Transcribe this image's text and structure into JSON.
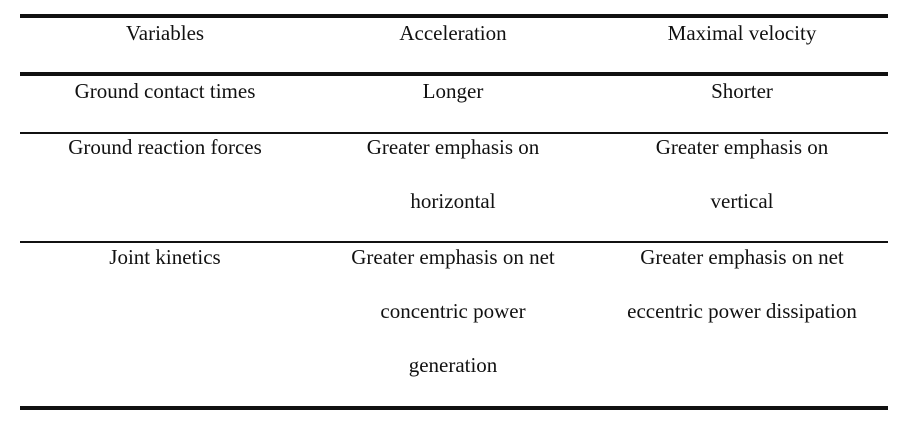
{
  "table": {
    "headers": [
      "Variables",
      "Acceleration",
      "Maximal velocity"
    ],
    "rows": [
      {
        "variable": [
          "Ground contact times"
        ],
        "acceleration": [
          "Longer"
        ],
        "max_velocity": [
          "Shorter"
        ]
      },
      {
        "variable": [
          "Ground reaction forces"
        ],
        "acceleration": [
          "Greater emphasis on",
          "horizontal"
        ],
        "max_velocity": [
          "Greater emphasis on",
          "vertical"
        ]
      },
      {
        "variable": [
          "Joint kinetics"
        ],
        "acceleration": [
          "Greater emphasis on net",
          "concentric power",
          "generation"
        ],
        "max_velocity": [
          "Greater emphasis on net",
          "eccentric power dissipation"
        ]
      }
    ]
  }
}
